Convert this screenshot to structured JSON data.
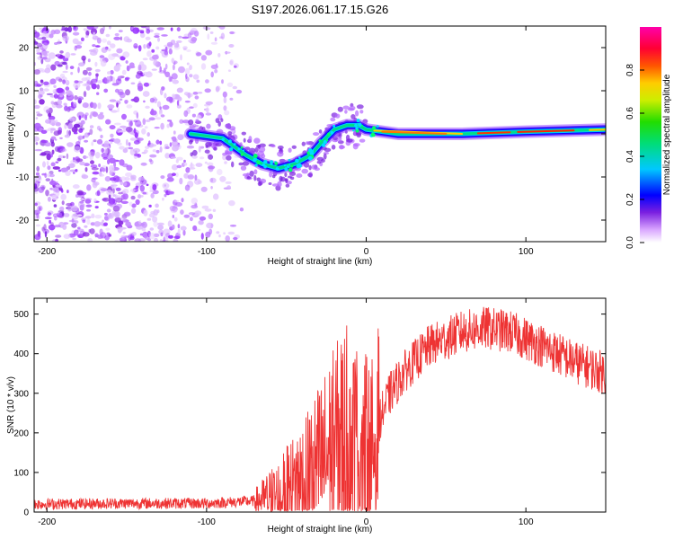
{
  "title": "S197.2026.061.17.15.G26",
  "chart_data": [
    {
      "type": "heatmap",
      "xlabel": "Height of straight line (km)",
      "ylabel": "Frequency (Hz)",
      "xlim": [
        -208,
        150
      ],
      "ylim": [
        -25,
        25
      ],
      "xticks": [
        -200,
        -100,
        0,
        100
      ],
      "yticks": [
        -20,
        -10,
        0,
        10,
        20
      ],
      "colorbar": {
        "label": "Normalized spectral amplitude",
        "range": [
          0,
          1
        ],
        "ticks": [
          0,
          0.2,
          0.4,
          0.6,
          0.8
        ]
      },
      "ridge": [
        {
          "x": -110,
          "y": 0
        },
        {
          "x": -90,
          "y": -1
        },
        {
          "x": -75,
          "y": -5
        },
        {
          "x": -65,
          "y": -7
        },
        {
          "x": -55,
          "y": -8
        },
        {
          "x": -45,
          "y": -7
        },
        {
          "x": -35,
          "y": -5
        },
        {
          "x": -28,
          "y": -2
        },
        {
          "x": -20,
          "y": 1
        },
        {
          "x": -12,
          "y": 2
        },
        {
          "x": -5,
          "y": 2
        },
        {
          "x": 0,
          "y": 1
        },
        {
          "x": 20,
          "y": 0
        },
        {
          "x": 60,
          "y": 0
        },
        {
          "x": 100,
          "y": 0.5
        },
        {
          "x": 150,
          "y": 1
        }
      ]
    },
    {
      "type": "line",
      "xlabel": "Height of straight line (km)",
      "ylabel": "SNR (10 * v/v)",
      "xlim": [
        -208,
        150
      ],
      "ylim": [
        0,
        540
      ],
      "xticks": [
        -200,
        -100,
        0,
        100
      ],
      "yticks": [
        0,
        100,
        200,
        300,
        400,
        500
      ],
      "color": "#ee3333",
      "envelope": [
        {
          "x": -208,
          "y": 20
        },
        {
          "x": -150,
          "y": 22
        },
        {
          "x": -100,
          "y": 22
        },
        {
          "x": -70,
          "y": 28
        },
        {
          "x": -50,
          "y": 45
        },
        {
          "x": -35,
          "y": 90
        },
        {
          "x": -25,
          "y": 140
        },
        {
          "x": -15,
          "y": 190
        },
        {
          "x": -5,
          "y": 190
        },
        {
          "x": 3,
          "y": 130
        },
        {
          "x": 8,
          "y": 230
        },
        {
          "x": 15,
          "y": 300
        },
        {
          "x": 25,
          "y": 360
        },
        {
          "x": 40,
          "y": 420
        },
        {
          "x": 60,
          "y": 455
        },
        {
          "x": 75,
          "y": 465
        },
        {
          "x": 90,
          "y": 455
        },
        {
          "x": 110,
          "y": 420
        },
        {
          "x": 130,
          "y": 380
        },
        {
          "x": 150,
          "y": 350
        }
      ]
    }
  ]
}
